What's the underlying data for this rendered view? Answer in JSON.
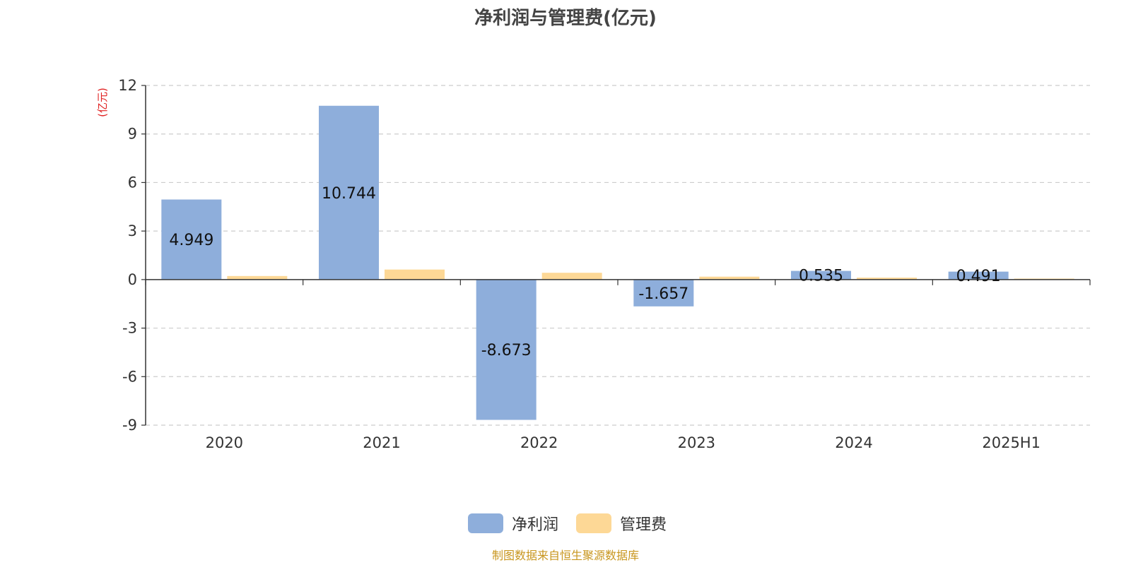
{
  "chart_data": {
    "type": "bar",
    "title": "净利润与管理费(亿元)",
    "ylabel": "(亿元)",
    "categories": [
      "2020",
      "2021",
      "2022",
      "2023",
      "2024",
      "2025H1"
    ],
    "ylim": [
      -9,
      12
    ],
    "yticks": [
      12,
      9,
      6,
      3,
      0,
      -3,
      -6,
      -9
    ],
    "grid": true,
    "legend_position": "bottom-center",
    "series": [
      {
        "name": "净利润",
        "color": "#8eaedb",
        "values": [
          4.949,
          10.744,
          -8.673,
          -1.657,
          0.535,
          0.491
        ],
        "labels": [
          "4.949",
          "10.744",
          "-8.673",
          "-1.657",
          "0.535",
          "0.491"
        ]
      },
      {
        "name": "管理费",
        "color": "#fdd896",
        "values": [
          0.22,
          0.62,
          0.42,
          0.18,
          0.12,
          0.06
        ]
      }
    ],
    "source": "制图数据来自恒生聚源数据库"
  }
}
